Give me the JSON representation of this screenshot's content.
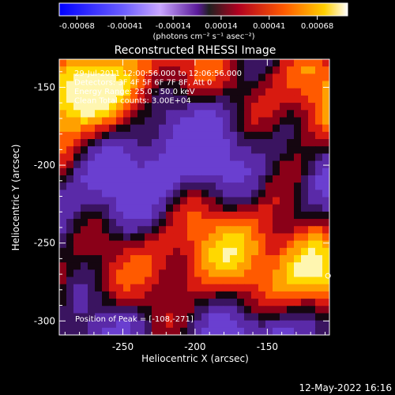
{
  "colorbar": {
    "ticks": [
      "-0.00068",
      "-0.00041",
      "-0.00014",
      "0.00014",
      "0.00041",
      "0.00068"
    ],
    "units": "(photons cm⁻² s⁻¹ asec⁻²)",
    "colors": [
      "#0000ff",
      "#ffffff",
      "#7a1fc0",
      "#d8001a",
      "#ff6600",
      "#ffd400",
      "#ffffff"
    ]
  },
  "footer": {
    "timestamp": "12-May-2022 16:16"
  },
  "chart_data": {
    "type": "heatmap",
    "title": "Reconstructed RHESSI Image",
    "xlabel": "Heliocentric X (arcsec)",
    "ylabel": "Heliocentric Y (arcsec)",
    "xlim": [
      -294,
      -107
    ],
    "ylim": [
      -309,
      -132
    ],
    "xticks": [
      "-250",
      "-200",
      "-150"
    ],
    "xtick_values": [
      -250,
      -200,
      -150
    ],
    "yticks": [
      "-150",
      "-200",
      "-250",
      "-300"
    ],
    "ytick_values": [
      -150,
      -200,
      -250,
      -300
    ],
    "annotations": [
      "29-Jul-2011 12:00:56.000 to 12:06:56.000",
      "Detectors: 3F 4F 5F 6F 7F 8F, Att 0",
      "Energy Range: 25.0 - 50.0 keV",
      "Clean     Total counts: 3.00E+04"
    ],
    "peak_label": "Position of Peak = [-108,-271]",
    "peak": [
      -108,
      -271
    ],
    "value_range": [
      -0.00068,
      0.00068
    ]
  }
}
